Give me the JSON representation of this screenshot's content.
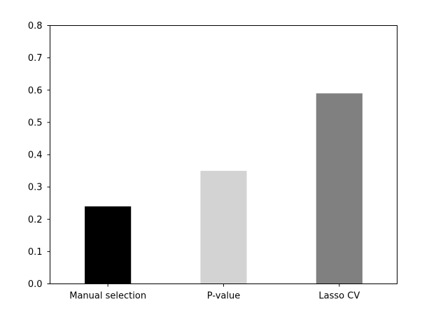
{
  "chart_data": {
    "type": "bar",
    "title": "",
    "xlabel": "",
    "ylabel": "",
    "categories": [
      "Manual selection",
      "P-value",
      "Lasso CV"
    ],
    "values": [
      0.24,
      0.35,
      0.59
    ],
    "bar_colors": [
      "#000000",
      "#d3d3d3",
      "#808080"
    ],
    "ylim": [
      0,
      0.8
    ],
    "yticks": [
      0.0,
      0.1,
      0.2,
      0.3,
      0.4,
      0.5,
      0.6,
      0.7,
      0.8
    ],
    "ytick_labels": [
      "0.0",
      "0.1",
      "0.2",
      "0.3",
      "0.4",
      "0.5",
      "0.6",
      "0.7",
      "0.8"
    ],
    "grid": false,
    "legend": "none"
  }
}
